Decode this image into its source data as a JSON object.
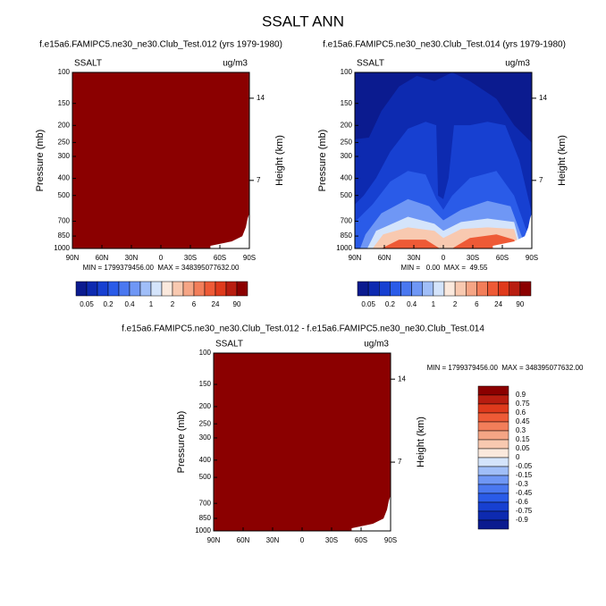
{
  "title": "SSALT ANN",
  "chart_data": [
    {
      "type": "contour",
      "subtitle": "f.e15a6.FAMIPC5.ne30_ne30.Club_Test.012 (yrs 1979-1980)",
      "variable": "SSALT",
      "units": "ug/m3",
      "ylabel": "Pressure (mb)",
      "y2label": "Height (km)",
      "stats": "MIN = 1799379456.00  MAX = 348395077632.00",
      "xlim": [
        90,
        -90
      ],
      "xticks": [
        {
          "value": 90,
          "label": "90N"
        },
        {
          "value": 60,
          "label": "60N"
        },
        {
          "value": 30,
          "label": "30N"
        },
        0,
        {
          "value": -30,
          "label": "30S"
        },
        {
          "value": -60,
          "label": "60S"
        },
        {
          "value": -90,
          "label": "90S"
        }
      ],
      "ylim": [
        1000,
        100
      ],
      "log_y": true,
      "yticks": [
        100,
        150,
        200,
        250,
        300,
        400,
        500,
        700,
        850,
        1000
      ],
      "y2lim": [
        1.2,
        16.2
      ],
      "y2ticks": [
        14,
        7
      ],
      "colorbar": {
        "orientation": "horizontal",
        "labels": [
          0.05,
          0.2,
          0.4,
          1,
          2,
          6,
          24,
          90
        ],
        "colors": [
          "#0b1b8f",
          "#0d2ab0",
          "#1740d1",
          "#2a5be8",
          "#4a78f0",
          "#6f97f5",
          "#a0bef8",
          "#d4e4fb",
          "#fbe9dd",
          "#f8c9b0",
          "#f5a585",
          "#f27e5a",
          "#ee5a36",
          "#df3a1c",
          "#b81d10",
          "#8b0000"
        ]
      }
    },
    {
      "type": "contour",
      "subtitle": "f.e15a6.FAMIPC5.ne30_ne30.Club_Test.014 (yrs 1979-1980)",
      "variable": "SSALT",
      "units": "ug/m3",
      "ylabel": "Pressure (mb)",
      "y2label": "Height (km)",
      "stats": "MIN =   0.00  MAX =  49.55",
      "xlim": [
        90,
        -90
      ],
      "xticks": [
        {
          "value": 90,
          "label": "90N"
        },
        {
          "value": 60,
          "label": "60N"
        },
        {
          "value": 30,
          "label": "30N"
        },
        0,
        {
          "value": -30,
          "label": "30S"
        },
        {
          "value": -60,
          "label": "60S"
        },
        {
          "value": -90,
          "label": "90S"
        }
      ],
      "ylim": [
        1000,
        100
      ],
      "log_y": true,
      "yticks": [
        100,
        150,
        200,
        250,
        300,
        400,
        500,
        700,
        850,
        1000
      ],
      "y2lim": [
        1.2,
        16.2
      ],
      "y2ticks": [
        14,
        7
      ],
      "colorbar": {
        "orientation": "horizontal",
        "labels": [
          0.05,
          0.2,
          0.4,
          1,
          2,
          6,
          24,
          90
        ],
        "colors": [
          "#0b1b8f",
          "#0d2ab0",
          "#1740d1",
          "#2a5be8",
          "#4a78f0",
          "#6f97f5",
          "#a0bef8",
          "#d4e4fb",
          "#fbe9dd",
          "#f8c9b0",
          "#f5a585",
          "#f27e5a",
          "#ee5a36",
          "#df3a1c",
          "#b81d10",
          "#8b0000"
        ]
      }
    },
    {
      "type": "contour",
      "subtitle": "f.e15a6.FAMIPC5.ne30_ne30.Club_Test.012 - f.e15a6.FAMIPC5.ne30_ne30.Club_Test.014",
      "variable": "SSALT",
      "units": "ug/m3",
      "ylabel": "Pressure (mb)",
      "y2label": "Height (km)",
      "stats": "MIN = 1799379456.00  MAX = 348395077632.00",
      "xlim": [
        90,
        -90
      ],
      "xticks": [
        {
          "value": 90,
          "label": "90N"
        },
        {
          "value": 60,
          "label": "60N"
        },
        {
          "value": 30,
          "label": "30N"
        },
        0,
        {
          "value": -30,
          "label": "30S"
        },
        {
          "value": -60,
          "label": "60S"
        },
        {
          "value": -90,
          "label": "90S"
        }
      ],
      "ylim": [
        1000,
        100
      ],
      "log_y": true,
      "yticks": [
        100,
        150,
        200,
        250,
        300,
        400,
        500,
        700,
        850,
        1000
      ],
      "y2lim": [
        1.2,
        16.2
      ],
      "y2ticks": [
        14,
        7
      ],
      "colorbar": {
        "orientation": "vertical",
        "labels": [
          0.9,
          0.75,
          0.6,
          0.45,
          0.3,
          0.15,
          0.05,
          0,
          -0.05,
          -0.15,
          -0.3,
          -0.45,
          -0.6,
          -0.75,
          -0.9
        ],
        "colors": [
          "#8b0000",
          "#b81d10",
          "#df3a1c",
          "#ee5a36",
          "#f27e5a",
          "#f5a585",
          "#f8c9b0",
          "#fbe9dd",
          "#d4e4fb",
          "#a0bef8",
          "#6f97f5",
          "#4a78f0",
          "#2a5be8",
          "#1740d1",
          "#0d2ab0",
          "#0b1b8f"
        ]
      }
    }
  ]
}
